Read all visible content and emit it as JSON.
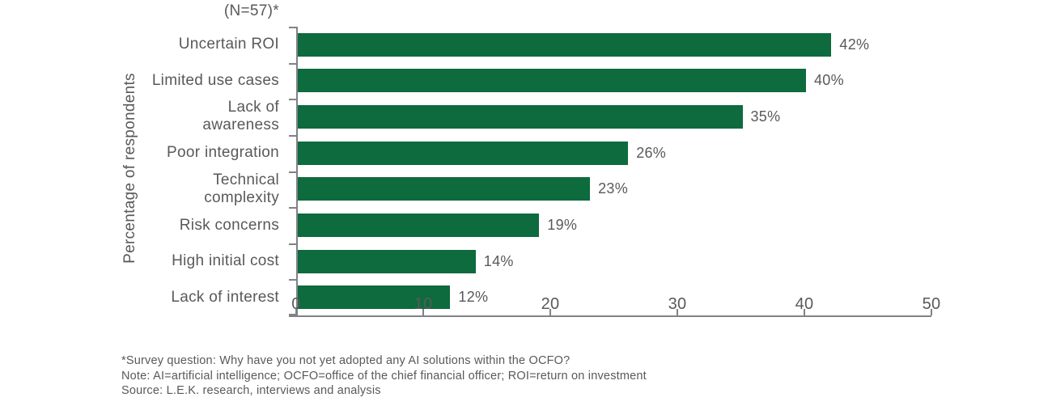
{
  "chart_data": {
    "type": "bar",
    "orientation": "horizontal",
    "sample_size_label": "(N=57)*",
    "ylabel": "Percentage of respondents",
    "categories": [
      "Uncertain ROI",
      "Limited use cases",
      "Lack of awareness",
      "Poor integration",
      "Technical complexity",
      "Risk concerns",
      "High initial cost",
      "Lack of interest"
    ],
    "category_label_lines": [
      [
        "Uncertain ROI"
      ],
      [
        "Limited use cases"
      ],
      [
        "Lack of",
        "awareness"
      ],
      [
        "Poor integration"
      ],
      [
        "Technical",
        "complexity"
      ],
      [
        "Risk concerns"
      ],
      [
        "High initial cost"
      ],
      [
        "Lack of interest"
      ]
    ],
    "values": [
      42,
      40,
      35,
      26,
      23,
      19,
      14,
      12
    ],
    "value_labels": [
      "42%",
      "40%",
      "35%",
      "26%",
      "23%",
      "19%",
      "14%",
      "12%"
    ],
    "xlim": [
      0,
      50
    ],
    "x_ticks": [
      0,
      10,
      20,
      30,
      40,
      50
    ],
    "grid": false,
    "legend": "none",
    "bar_color": "#0D6B3D",
    "text_color": "#58595B",
    "axis_color": "#808285",
    "footnotes": [
      "*Survey question: Why have you not yet adopted any AI solutions within the OCFO?",
      "Note: AI=artificial intelligence; OCFO=office of the chief financial officer; ROI=return on investment",
      "Source: L.E.K. research, interviews and analysis"
    ]
  }
}
